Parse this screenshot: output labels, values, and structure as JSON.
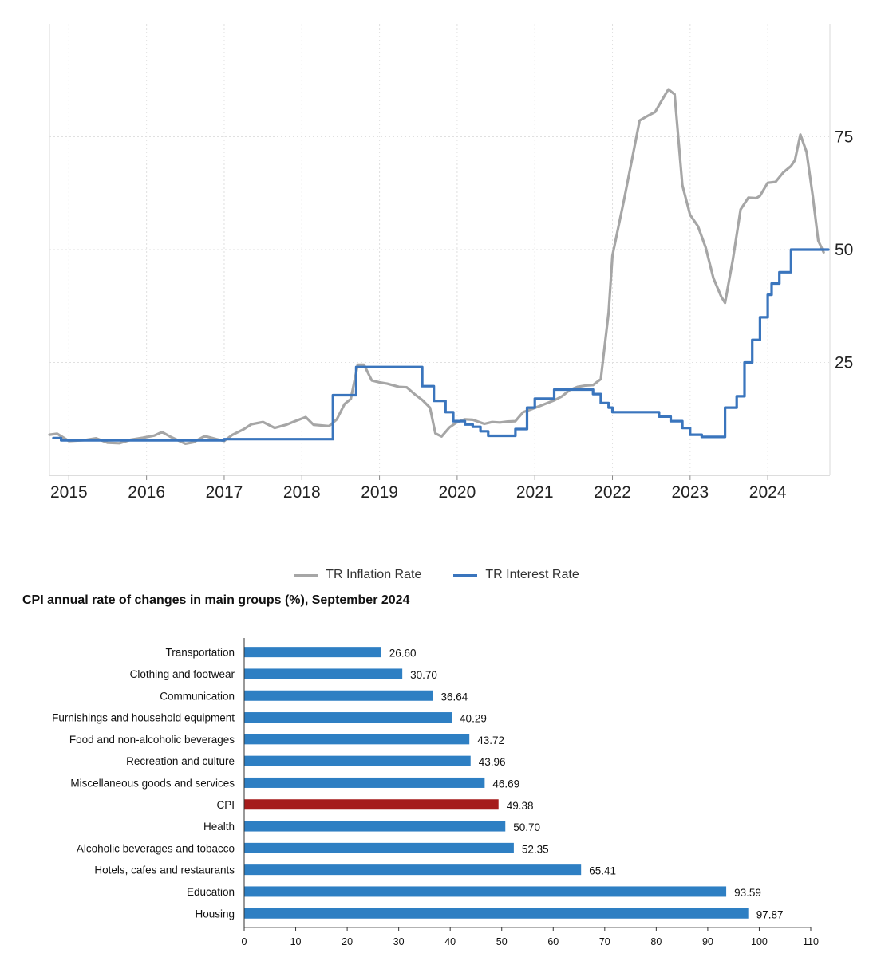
{
  "chart_data": [
    {
      "type": "line",
      "title": "",
      "xlabel": "",
      "ylabel": "",
      "xlim": [
        2014.75,
        2024.8
      ],
      "ylim": [
        0,
        100
      ],
      "x_ticks": [
        2015,
        2016,
        2017,
        2018,
        2019,
        2020,
        2021,
        2022,
        2023,
        2024
      ],
      "x_tick_labels": [
        "2015",
        "2016",
        "2017",
        "2018",
        "2019",
        "2020",
        "2021",
        "2022",
        "2023",
        "2024"
      ],
      "y_ticks": [
        25,
        50,
        75
      ],
      "y_tick_labels": [
        "25",
        "50",
        "75"
      ],
      "grid": true,
      "series": [
        {
          "name": "TR Inflation Rate",
          "color": "#a6a6a6",
          "step": false,
          "points": [
            [
              2014.75,
              9.0
            ],
            [
              2014.85,
              9.2
            ],
            [
              2015.0,
              7.6
            ],
            [
              2015.2,
              7.8
            ],
            [
              2015.35,
              8.2
            ],
            [
              2015.5,
              7.2
            ],
            [
              2015.65,
              7.1
            ],
            [
              2015.8,
              7.9
            ],
            [
              2015.95,
              8.3
            ],
            [
              2016.1,
              8.8
            ],
            [
              2016.2,
              9.6
            ],
            [
              2016.3,
              8.6
            ],
            [
              2016.5,
              7.0
            ],
            [
              2016.6,
              7.3
            ],
            [
              2016.75,
              8.7
            ],
            [
              2016.9,
              8.0
            ],
            [
              2017.0,
              7.6
            ],
            [
              2017.1,
              8.9
            ],
            [
              2017.25,
              10.2
            ],
            [
              2017.35,
              11.3
            ],
            [
              2017.5,
              11.8
            ],
            [
              2017.65,
              10.5
            ],
            [
              2017.8,
              11.2
            ],
            [
              2017.9,
              11.9
            ],
            [
              2018.05,
              12.9
            ],
            [
              2018.15,
              11.2
            ],
            [
              2018.35,
              10.9
            ],
            [
              2018.45,
              12.4
            ],
            [
              2018.55,
              15.8
            ],
            [
              2018.63,
              16.9
            ],
            [
              2018.72,
              24.5
            ],
            [
              2018.8,
              24.5
            ],
            [
              2018.9,
              21.0
            ],
            [
              2019.0,
              20.6
            ],
            [
              2019.1,
              20.3
            ],
            [
              2019.25,
              19.6
            ],
            [
              2019.35,
              19.5
            ],
            [
              2019.45,
              18.0
            ],
            [
              2019.55,
              16.7
            ],
            [
              2019.65,
              15.0
            ],
            [
              2019.72,
              9.3
            ],
            [
              2019.8,
              8.6
            ],
            [
              2019.9,
              10.6
            ],
            [
              2020.0,
              11.8
            ],
            [
              2020.1,
              12.4
            ],
            [
              2020.2,
              12.3
            ],
            [
              2020.35,
              11.4
            ],
            [
              2020.45,
              11.8
            ],
            [
              2020.55,
              11.7
            ],
            [
              2020.65,
              11.9
            ],
            [
              2020.75,
              12.0
            ],
            [
              2020.85,
              14.0
            ],
            [
              2020.95,
              14.6
            ],
            [
              2021.1,
              15.6
            ],
            [
              2021.25,
              16.6
            ],
            [
              2021.35,
              17.5
            ],
            [
              2021.45,
              18.9
            ],
            [
              2021.55,
              19.6
            ],
            [
              2021.65,
              19.9
            ],
            [
              2021.75,
              20.0
            ],
            [
              2021.85,
              21.3
            ],
            [
              2021.95,
              36.1
            ],
            [
              2022.0,
              48.7
            ],
            [
              2022.15,
              61.1
            ],
            [
              2022.25,
              69.9
            ],
            [
              2022.35,
              78.6
            ],
            [
              2022.45,
              79.6
            ],
            [
              2022.55,
              80.5
            ],
            [
              2022.65,
              83.5
            ],
            [
              2022.72,
              85.5
            ],
            [
              2022.8,
              84.4
            ],
            [
              2022.9,
              64.3
            ],
            [
              2023.0,
              57.7
            ],
            [
              2023.1,
              55.2
            ],
            [
              2023.2,
              50.5
            ],
            [
              2023.3,
              43.7
            ],
            [
              2023.4,
              39.6
            ],
            [
              2023.45,
              38.2
            ],
            [
              2023.55,
              47.8
            ],
            [
              2023.65,
              58.9
            ],
            [
              2023.75,
              61.5
            ],
            [
              2023.85,
              61.4
            ],
            [
              2023.9,
              61.9
            ],
            [
              2024.0,
              64.8
            ],
            [
              2024.1,
              65.0
            ],
            [
              2024.2,
              67.1
            ],
            [
              2024.3,
              68.5
            ],
            [
              2024.35,
              69.8
            ],
            [
              2024.42,
              75.5
            ],
            [
              2024.5,
              71.6
            ],
            [
              2024.58,
              61.8
            ],
            [
              2024.65,
              52.0
            ],
            [
              2024.72,
              49.4
            ]
          ]
        },
        {
          "name": "TR Interest Rate",
          "color": "#3a75bd",
          "step": true,
          "points": [
            [
              2014.8,
              8.25
            ],
            [
              2014.9,
              7.75
            ],
            [
              2016.0,
              7.75
            ],
            [
              2017.0,
              8.0
            ],
            [
              2018.4,
              17.75
            ],
            [
              2018.7,
              24.0
            ],
            [
              2019.55,
              19.75
            ],
            [
              2019.7,
              16.5
            ],
            [
              2019.85,
              14.0
            ],
            [
              2019.95,
              12.0
            ],
            [
              2020.1,
              11.25
            ],
            [
              2020.2,
              10.75
            ],
            [
              2020.3,
              9.75
            ],
            [
              2020.4,
              8.75
            ],
            [
              2020.75,
              10.25
            ],
            [
              2020.9,
              15.0
            ],
            [
              2021.0,
              17.0
            ],
            [
              2021.25,
              19.0
            ],
            [
              2021.75,
              18.0
            ],
            [
              2021.85,
              16.0
            ],
            [
              2021.95,
              15.0
            ],
            [
              2022.0,
              14.0
            ],
            [
              2022.6,
              13.0
            ],
            [
              2022.75,
              12.0
            ],
            [
              2022.9,
              10.5
            ],
            [
              2023.0,
              9.0
            ],
            [
              2023.15,
              8.5
            ],
            [
              2023.45,
              15.0
            ],
            [
              2023.6,
              17.5
            ],
            [
              2023.7,
              25.0
            ],
            [
              2023.8,
              30.0
            ],
            [
              2023.9,
              35.0
            ],
            [
              2024.0,
              40.0
            ],
            [
              2024.05,
              42.5
            ],
            [
              2024.15,
              45.0
            ],
            [
              2024.3,
              50.0
            ],
            [
              2024.78,
              50.0
            ]
          ]
        }
      ],
      "legend": {
        "position": "bottom-center",
        "entries": [
          "TR Inflation Rate",
          "TR Interest Rate"
        ]
      }
    },
    {
      "type": "bar",
      "orientation": "horizontal",
      "title": "CPI annual rate of changes in main groups (%), September 2024",
      "categories": [
        "Transportation",
        "Clothing and footwear",
        "Communication",
        "Furnishings and household equipment",
        "Food and non-alcoholic beverages",
        "Recreation and culture",
        "Miscellaneous goods and services",
        "CPI",
        "Health",
        "Alcoholic beverages and tobacco",
        "Hotels, cafes and restaurants",
        "Education",
        "Housing"
      ],
      "values": [
        26.6,
        30.7,
        36.64,
        40.29,
        43.72,
        43.96,
        46.69,
        49.38,
        50.7,
        52.35,
        65.41,
        93.59,
        97.87
      ],
      "value_labels": [
        "26.60",
        "30.70",
        "36.64",
        "40.29",
        "43.72",
        "43.96",
        "46.69",
        "49.38",
        "50.70",
        "52.35",
        "65.41",
        "93.59",
        "97.87"
      ],
      "bar_color": "#2e7fc3",
      "highlight_category": "CPI",
      "highlight_color": "#a51b1b",
      "xlim": [
        0,
        110
      ],
      "x_ticks": [
        0,
        10,
        20,
        30,
        40,
        50,
        60,
        70,
        80,
        90,
        100,
        110
      ],
      "x_tick_labels": [
        "0",
        "10",
        "20",
        "30",
        "40",
        "50",
        "60",
        "70",
        "80",
        "90",
        "100",
        "110"
      ],
      "xlabel": "",
      "ylabel": "",
      "grid": false
    }
  ]
}
